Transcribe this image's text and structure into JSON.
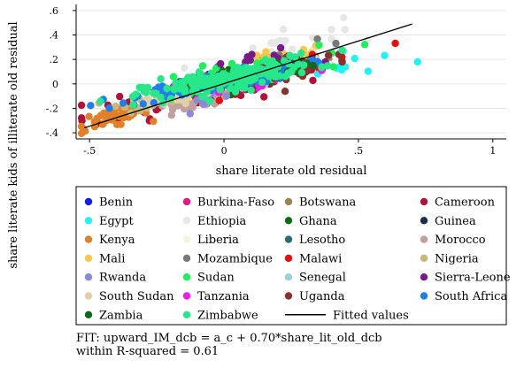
{
  "chart_data": {
    "type": "scatter",
    "title": "",
    "xlabel": "share literate old residual",
    "ylabel": "share literate kids of illiterate old residual",
    "xlim": [
      -0.55,
      1.05
    ],
    "ylim": [
      -0.45,
      0.65
    ],
    "xticks": [
      -0.5,
      0,
      0.5,
      1
    ],
    "xtick_labels": [
      "-.5",
      "0",
      ".5",
      "1"
    ],
    "yticks": [
      -0.4,
      -0.2,
      0,
      0.2,
      0.4,
      0.6
    ],
    "ytick_labels": [
      "-.4",
      "-.2",
      "0",
      ".2",
      ".4",
      ".6"
    ],
    "grid": "horizontal",
    "legend_position": "bottom",
    "series": [
      {
        "name": "Benin",
        "color": "#1a1ae6",
        "n": 40,
        "cx": -0.02,
        "cy": 0.02,
        "sx": 0.1,
        "sy": 0.06
      },
      {
        "name": "Burkina-Faso",
        "color": "#e6197e",
        "n": 30,
        "cx": -0.08,
        "cy": -0.01,
        "sx": 0.1,
        "sy": 0.07
      },
      {
        "name": "Botswana",
        "color": "#9a8454",
        "n": 35,
        "cx": 0.22,
        "cy": 0.15,
        "sx": 0.08,
        "sy": 0.05
      },
      {
        "name": "Cameroon",
        "color": "#b0123a",
        "n": 90,
        "cx": -0.05,
        "cy": -0.04,
        "sx": 0.22,
        "sy": 0.12
      },
      {
        "name": "Egypt",
        "color": "#21f3f3",
        "n": 12,
        "cx": 0.45,
        "cy": 0.15,
        "sx": 0.12,
        "sy": 0.09
      },
      {
        "name": "Ethiopia",
        "color": "#e6e6e6",
        "n": 45,
        "cx": 0.2,
        "cy": 0.25,
        "sx": 0.12,
        "sy": 0.18
      },
      {
        "name": "Ghana",
        "color": "#0e6b14",
        "n": 45,
        "cx": 0.08,
        "cy": 0.06,
        "sx": 0.14,
        "sy": 0.08
      },
      {
        "name": "Guinea",
        "color": "#1e2b4a",
        "n": 8,
        "cx": -0.05,
        "cy": 0.02,
        "sx": 0.12,
        "sy": 0.06
      },
      {
        "name": "Kenya",
        "color": "#e08028",
        "n": 40,
        "cx": -0.42,
        "cy": -0.28,
        "sx": 0.07,
        "sy": 0.06
      },
      {
        "name": "Liberia",
        "color": "#f5f5dc",
        "n": 10,
        "cx": -0.1,
        "cy": -0.05,
        "sx": 0.12,
        "sy": 0.08
      },
      {
        "name": "Lesotho",
        "color": "#2a6e6e",
        "n": 25,
        "cx": 0.02,
        "cy": 0.04,
        "sx": 0.1,
        "sy": 0.06
      },
      {
        "name": "Morocco",
        "color": "#c0a0a0",
        "n": 25,
        "cx": -0.12,
        "cy": -0.18,
        "sx": 0.08,
        "sy": 0.05
      },
      {
        "name": "Mali",
        "color": "#f8c84a",
        "n": 30,
        "cx": 0.2,
        "cy": 0.18,
        "sx": 0.1,
        "sy": 0.08
      },
      {
        "name": "Mozambique",
        "color": "#7a7a7a",
        "n": 6,
        "cx": 0.3,
        "cy": 0.2,
        "sx": 0.15,
        "sy": 0.1
      },
      {
        "name": "Malawi",
        "color": "#e80e0e",
        "n": 20,
        "cx": 0.3,
        "cy": 0.15,
        "sx": 0.14,
        "sy": 0.1
      },
      {
        "name": "Nigeria",
        "color": "#c8b87a",
        "n": 50,
        "cx": -0.18,
        "cy": -0.08,
        "sx": 0.1,
        "sy": 0.07
      },
      {
        "name": "Rwanda",
        "color": "#8a8ad8",
        "n": 12,
        "cx": -0.08,
        "cy": -0.08,
        "sx": 0.08,
        "sy": 0.06
      },
      {
        "name": "Sudan",
        "color": "#1cf05a",
        "n": 50,
        "cx": 0.05,
        "cy": 0.08,
        "sx": 0.15,
        "sy": 0.09
      },
      {
        "name": "Senegal",
        "color": "#9fd0d8",
        "n": 12,
        "cx": 0.1,
        "cy": 0.02,
        "sx": 0.1,
        "sy": 0.06
      },
      {
        "name": "Sierra-Leone",
        "color": "#7a1a88",
        "n": 15,
        "cx": 0.15,
        "cy": 0.15,
        "sx": 0.12,
        "sy": 0.12
      },
      {
        "name": "South Sudan",
        "color": "#e0d0a8",
        "n": 30,
        "cx": -0.2,
        "cy": -0.12,
        "sx": 0.08,
        "sy": 0.06
      },
      {
        "name": "Tanzania",
        "color": "#ee1aee",
        "n": 12,
        "cx": 0.15,
        "cy": 0.05,
        "sx": 0.1,
        "sy": 0.08
      },
      {
        "name": "Uganda",
        "color": "#8b3030",
        "n": 35,
        "cx": 0.25,
        "cy": 0.12,
        "sx": 0.12,
        "sy": 0.1
      },
      {
        "name": "South Africa",
        "color": "#1e7ef0",
        "n": 130,
        "cx": -0.03,
        "cy": 0.01,
        "sx": 0.16,
        "sy": 0.06
      },
      {
        "name": "Zambia",
        "color": "#0f6b1a",
        "n": 25,
        "cx": 0.1,
        "cy": 0.08,
        "sx": 0.12,
        "sy": 0.07
      },
      {
        "name": "Zimbabwe",
        "color": "#26e88a",
        "n": 180,
        "cx": 0.02,
        "cy": 0.04,
        "sx": 0.16,
        "sy": 0.08
      }
    ],
    "fitted_line": {
      "name": "Fitted values",
      "color": "#000000",
      "x": [
        -0.52,
        0.7
      ],
      "y": [
        -0.36,
        0.49
      ]
    }
  },
  "legend_items": [
    {
      "label": "Benin",
      "color": "#1a1ae6"
    },
    {
      "label": "Burkina-Faso",
      "color": "#e6197e"
    },
    {
      "label": "Botswana",
      "color": "#9a8454"
    },
    {
      "label": "Cameroon",
      "color": "#b0123a"
    },
    {
      "label": "Egypt",
      "color": "#21f3f3"
    },
    {
      "label": "Ethiopia",
      "color": "#e6e6e6"
    },
    {
      "label": "Ghana",
      "color": "#0e6b14"
    },
    {
      "label": "Guinea",
      "color": "#1e2b4a"
    },
    {
      "label": "Kenya",
      "color": "#e08028"
    },
    {
      "label": "Liberia",
      "color": "#f5f5dc"
    },
    {
      "label": "Lesotho",
      "color": "#2a6e6e"
    },
    {
      "label": "Morocco",
      "color": "#c0a0a0"
    },
    {
      "label": "Mali",
      "color": "#f8c84a"
    },
    {
      "label": "Mozambique",
      "color": "#7a7a7a"
    },
    {
      "label": "Malawi",
      "color": "#e80e0e"
    },
    {
      "label": "Nigeria",
      "color": "#c8b87a"
    },
    {
      "label": "Rwanda",
      "color": "#8a8ad8"
    },
    {
      "label": "Sudan",
      "color": "#1cf05a"
    },
    {
      "label": "Senegal",
      "color": "#9fd0d8"
    },
    {
      "label": "Sierra-Leone",
      "color": "#7a1a88"
    },
    {
      "label": "South Sudan",
      "color": "#e0d0a8"
    },
    {
      "label": "Tanzania",
      "color": "#ee1aee"
    },
    {
      "label": "Uganda",
      "color": "#8b3030"
    },
    {
      "label": "South Africa",
      "color": "#1e7ef0"
    },
    {
      "label": "Zambia",
      "color": "#0f6b1a"
    },
    {
      "label": "Zimbabwe",
      "color": "#26e88a"
    },
    {
      "label": "Fitted values",
      "color": "#000000",
      "line": true
    }
  ],
  "notes": {
    "fit_line": "FIT: upward_IM_dcb = a_c + 0.70*share_lit_old_dcb",
    "r2_line": "within R-squared = 0.61"
  }
}
